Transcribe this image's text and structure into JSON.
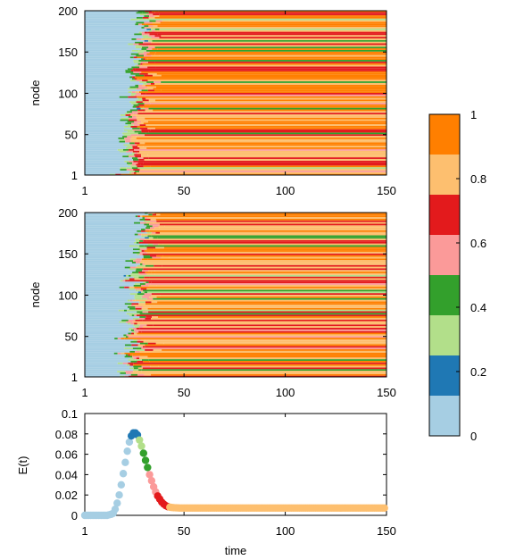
{
  "chart_data": [
    {
      "type": "heatmap",
      "ylabel": "node",
      "xlabel": "",
      "xlim": [
        1,
        150
      ],
      "ylim": [
        1,
        200
      ],
      "x_ticks": [
        "1",
        "50",
        "100",
        "150"
      ],
      "y_ticks": [
        "1",
        "50",
        "100",
        "150",
        "200"
      ],
      "nodes": 200,
      "time_steps": 150,
      "description_of_values": "per-node state over time, colour scale 0-1",
      "transition_time_range": [
        13,
        40
      ],
      "final_state_mix": {
        "0.8-1.0": 0.7,
        "0.6-0.8": 0.2,
        "0.2-0.6": 0.1
      }
    },
    {
      "type": "heatmap",
      "ylabel": "node",
      "xlabel": "",
      "xlim": [
        1,
        150
      ],
      "ylim": [
        1,
        200
      ],
      "x_ticks": [
        "1",
        "50",
        "100",
        "150"
      ],
      "y_ticks": [
        "1",
        "50",
        "100",
        "150",
        "200"
      ],
      "nodes": 200,
      "time_steps": 150,
      "transition_time_range": [
        13,
        40
      ],
      "final_state_mix": {
        "0.8-1.0": 0.7,
        "0.6-0.8": 0.2,
        "0.2-0.6": 0.1
      }
    },
    {
      "type": "scatter",
      "xlabel": "time",
      "ylabel": "E(t)",
      "xlim": [
        1,
        150
      ],
      "ylim": [
        0,
        0.1
      ],
      "x_ticks": [
        "1",
        "50",
        "100",
        "150"
      ],
      "y_ticks": [
        "0",
        "0.02",
        "0.04",
        "0.06",
        "0.08",
        "0.1"
      ],
      "x": [
        1,
        2,
        3,
        4,
        5,
        6,
        7,
        8,
        9,
        10,
        11,
        12,
        13,
        14,
        15,
        16,
        17,
        18,
        19,
        20,
        21,
        22,
        23,
        24,
        25,
        26,
        27,
        28,
        29,
        30,
        31,
        32,
        33,
        34,
        35,
        36,
        37,
        38,
        39,
        40,
        41,
        42,
        43,
        44,
        45,
        46,
        47,
        48,
        49,
        50,
        53,
        56,
        59,
        62,
        65,
        68,
        71,
        74,
        77,
        80,
        83,
        86,
        89,
        92,
        95,
        98,
        101,
        104,
        107,
        110,
        113,
        116,
        119,
        122,
        125,
        128,
        131,
        134,
        137,
        140,
        143,
        146,
        149
      ],
      "y": [
        0,
        0,
        0,
        0,
        0,
        0,
        0,
        0,
        0,
        0,
        0,
        0,
        0.0005,
        0.001,
        0.002,
        0.006,
        0.012,
        0.02,
        0.03,
        0.041,
        0.052,
        0.063,
        0.072,
        0.078,
        0.081,
        0.081,
        0.079,
        0.074,
        0.068,
        0.061,
        0.054,
        0.047,
        0.04,
        0.034,
        0.028,
        0.023,
        0.019,
        0.016,
        0.013,
        0.011,
        0.0095,
        0.0085,
        0.008,
        0.0077,
        0.0075,
        0.0074,
        0.0073,
        0.0072,
        0.0072,
        0.0072,
        0.0072,
        0.0072,
        0.0072,
        0.0072,
        0.0072,
        0.0072,
        0.0072,
        0.0072,
        0.0072,
        0.0072,
        0.0072,
        0.0072,
        0.0072,
        0.0072,
        0.0072,
        0.0072,
        0.0072,
        0.0072,
        0.0072,
        0.0072,
        0.0072,
        0.0072,
        0.0072,
        0.0072,
        0.0072,
        0.0072,
        0.0072,
        0.0072,
        0.0072,
        0.0072,
        0.0072,
        0.0072,
        0.0072
      ],
      "point_color_by": "mean node state at time t (colour scale 0-1)"
    }
  ],
  "colorbar": {
    "ticks": [
      "0",
      "0.2",
      "0.4",
      "0.6",
      "0.8",
      "1"
    ],
    "tick_values": [
      0,
      0.2,
      0.4,
      0.6,
      0.8,
      1
    ],
    "colors": [
      "#a6cee3",
      "#1f78b4",
      "#b2df8a",
      "#33a02c",
      "#fb9a99",
      "#e31a1c",
      "#fdbf6f",
      "#ff7f00"
    ]
  }
}
